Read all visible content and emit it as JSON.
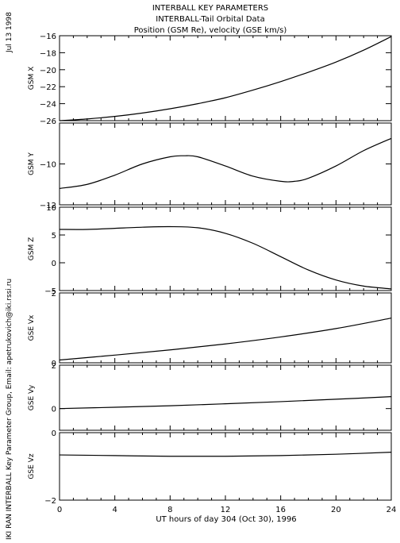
{
  "header": {
    "date": "Jul 13 1998",
    "credit": "IKI RAN INTERBALL Key Parameter Group, Email: apetrukovich@iki.rssi.ru"
  },
  "chart_data": {
    "type": "line",
    "title": [
      "INTERBALL KEY PARAMETERS",
      "INTERBALL-Tail Orbital Data",
      "Position (GSM Re), velocity (GSE km/s)"
    ],
    "xlabel": "UT hours of day 304 (Oct 30), 1996",
    "xlim": [
      0,
      24
    ],
    "xticks": [
      0,
      4,
      8,
      12,
      16,
      20,
      24
    ],
    "panels": [
      {
        "ylabel": "GSM X",
        "ylim": [
          -26,
          -16
        ],
        "yticks": [
          -26,
          -24,
          -22,
          -20,
          -18,
          -16
        ],
        "x": [
          0,
          2,
          4,
          6,
          8,
          10,
          12,
          14,
          16,
          18,
          20,
          22,
          24
        ],
        "y": [
          -26.0,
          -25.8,
          -25.5,
          -25.1,
          -24.6,
          -24.0,
          -23.3,
          -22.4,
          -21.4,
          -20.3,
          -19.1,
          -17.7,
          -16.1
        ]
      },
      {
        "ylabel": "GSM Y",
        "ylim": [
          -12,
          -8
        ],
        "yticks": [
          -12,
          -10
        ],
        "x": [
          0,
          2,
          4,
          6,
          8,
          9,
          10,
          12,
          14,
          16,
          17,
          18,
          20,
          22,
          24
        ],
        "y": [
          -11.2,
          -11.0,
          -10.55,
          -10.0,
          -9.65,
          -9.6,
          -9.65,
          -10.1,
          -10.6,
          -10.85,
          -10.85,
          -10.7,
          -10.1,
          -9.35,
          -8.75
        ]
      },
      {
        "ylabel": "GSM Z",
        "ylim": [
          -5,
          10
        ],
        "yticks": [
          -5,
          0,
          5,
          10
        ],
        "x": [
          0,
          2,
          4,
          6,
          8,
          10,
          12,
          14,
          16,
          18,
          20,
          22,
          24
        ],
        "y": [
          6.0,
          6.0,
          6.2,
          6.4,
          6.5,
          6.3,
          5.3,
          3.5,
          1.1,
          -1.3,
          -3.1,
          -4.2,
          -4.7
        ]
      },
      {
        "ylabel": "GSE Vx",
        "ylim": [
          0,
          2
        ],
        "yticks": [
          0,
          2
        ],
        "x": [
          0,
          4,
          8,
          12,
          16,
          20,
          24
        ],
        "y": [
          0.08,
          0.22,
          0.37,
          0.54,
          0.74,
          0.98,
          1.28
        ]
      },
      {
        "ylabel": "GSE Vy",
        "ylim": [
          -1,
          2
        ],
        "yticks": [
          0,
          2
        ],
        "x": [
          0,
          4,
          8,
          12,
          16,
          20,
          24
        ],
        "y": [
          0.0,
          0.06,
          0.13,
          0.22,
          0.32,
          0.43,
          0.55
        ]
      },
      {
        "ylabel": "GSE Vz",
        "ylim": [
          -2,
          0
        ],
        "yticks": [
          -2,
          0
        ],
        "x": [
          0,
          4,
          8,
          12,
          16,
          20,
          24
        ],
        "y": [
          -0.66,
          -0.68,
          -0.7,
          -0.7,
          -0.68,
          -0.64,
          -0.58
        ]
      }
    ]
  }
}
